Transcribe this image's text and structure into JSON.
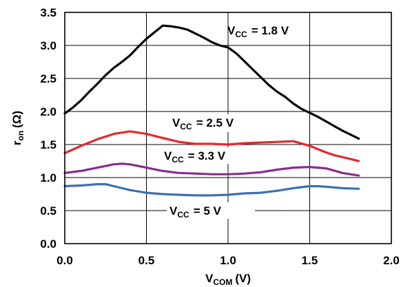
{
  "chart_data": {
    "type": "line",
    "xlabel": {
      "main": "V",
      "sub": "COM",
      "unit": "(V)"
    },
    "ylabel": {
      "main": "r",
      "sub": "on",
      "unit": "(Ω)"
    },
    "xlim": [
      0,
      2
    ],
    "ylim": [
      0,
      3.5
    ],
    "x_ticks": [
      0,
      0.5,
      1,
      1.5,
      2
    ],
    "x_tick_labels": [
      "0.0",
      "0.5",
      "1.0",
      "1.5",
      "2.0"
    ],
    "y_ticks": [
      0,
      0.5,
      1,
      1.5,
      2,
      2.5,
      3,
      3.5
    ],
    "y_tick_labels": [
      "0.0",
      "0.5",
      "1.0",
      "1.5",
      "2.0",
      "2.5",
      "3.0",
      "3.5"
    ],
    "grid": true,
    "series": [
      {
        "label_main": "V",
        "label_sub": "CC",
        "label_value": "= 1.8 V",
        "color": "#000000",
        "x": [
          0,
          0.05,
          0.1,
          0.15,
          0.2,
          0.25,
          0.3,
          0.35,
          0.4,
          0.45,
          0.5,
          0.55,
          0.6,
          0.65,
          0.7,
          0.75,
          0.8,
          0.85,
          0.9,
          0.95,
          1.0,
          1.05,
          1.1,
          1.15,
          1.2,
          1.25,
          1.3,
          1.35,
          1.4,
          1.45,
          1.5,
          1.55,
          1.6,
          1.65,
          1.7,
          1.75,
          1.8
        ],
        "y": [
          1.97,
          2.06,
          2.17,
          2.3,
          2.42,
          2.55,
          2.66,
          2.75,
          2.85,
          2.98,
          3.1,
          3.2,
          3.3,
          3.29,
          3.27,
          3.24,
          3.18,
          3.12,
          3.05,
          3.0,
          2.97,
          2.88,
          2.76,
          2.64,
          2.52,
          2.4,
          2.3,
          2.22,
          2.12,
          2.04,
          1.98,
          1.92,
          1.85,
          1.78,
          1.71,
          1.65,
          1.59
        ]
      },
      {
        "label_main": "V",
        "label_sub": "CC",
        "label_value": "= 2.5 V",
        "color": "#e8262b",
        "x": [
          0,
          0.1,
          0.2,
          0.3,
          0.4,
          0.5,
          0.6,
          0.7,
          0.8,
          0.9,
          1.0,
          1.1,
          1.2,
          1.3,
          1.4,
          1.5,
          1.6,
          1.65,
          1.7,
          1.75,
          1.8
        ],
        "y": [
          1.37,
          1.48,
          1.58,
          1.66,
          1.7,
          1.66,
          1.6,
          1.54,
          1.51,
          1.51,
          1.5,
          1.52,
          1.53,
          1.54,
          1.55,
          1.48,
          1.38,
          1.34,
          1.31,
          1.28,
          1.25
        ]
      },
      {
        "label_main": "V",
        "label_sub": "CC",
        "label_value": "= 3.3 V",
        "color": "#8b2a8f",
        "x": [
          0,
          0.1,
          0.2,
          0.3,
          0.35,
          0.4,
          0.5,
          0.6,
          0.7,
          0.8,
          0.9,
          1.0,
          1.1,
          1.2,
          1.3,
          1.4,
          1.5,
          1.6,
          1.7,
          1.8
        ],
        "y": [
          1.07,
          1.1,
          1.15,
          1.2,
          1.21,
          1.2,
          1.15,
          1.1,
          1.07,
          1.06,
          1.05,
          1.05,
          1.06,
          1.08,
          1.12,
          1.15,
          1.16,
          1.14,
          1.07,
          1.03
        ]
      },
      {
        "label_main": "V",
        "label_sub": "CC",
        "label_value": "= 5 V",
        "color": "#3a6fb5",
        "x": [
          0,
          0.1,
          0.2,
          0.25,
          0.3,
          0.4,
          0.5,
          0.6,
          0.7,
          0.8,
          0.9,
          1.0,
          1.1,
          1.2,
          1.3,
          1.4,
          1.5,
          1.55,
          1.6,
          1.7,
          1.8
        ],
        "y": [
          0.87,
          0.88,
          0.9,
          0.9,
          0.87,
          0.81,
          0.77,
          0.75,
          0.74,
          0.73,
          0.73,
          0.74,
          0.76,
          0.77,
          0.8,
          0.84,
          0.87,
          0.87,
          0.86,
          0.84,
          0.83
        ]
      }
    ]
  }
}
